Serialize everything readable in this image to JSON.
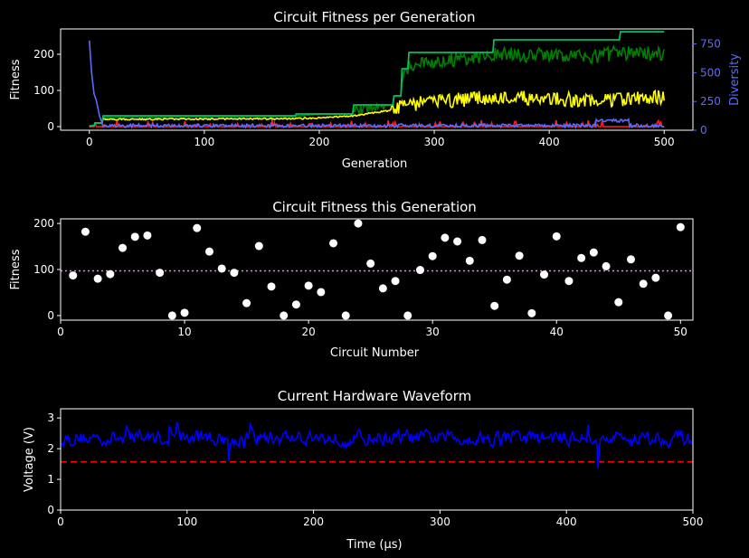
{
  "theme": {
    "background": "#000000",
    "foreground": "#ffffff",
    "diversity_color": "#5b6bff",
    "max_color": "#00c060",
    "p90_color": "#008000",
    "mean_color": "#ffff00",
    "min_color": "#ff2020",
    "scatter_color": "#ffffff",
    "mean_line_color": "#ee82ee",
    "waveform_color": "#0000ff",
    "threshold_color": "#ff0000"
  },
  "chart_data": [
    {
      "type": "line",
      "title": "Circuit Fitness per Generation",
      "xlabel": "Generation",
      "ylabel": "Fitness",
      "y2label": "Diversity",
      "xlim": [
        -25,
        525
      ],
      "ylim": [
        -10,
        270
      ],
      "y2lim": [
        0,
        880
      ],
      "xticks": [
        0,
        100,
        200,
        300,
        400,
        500
      ],
      "yticks": [
        0,
        100,
        200
      ],
      "y2ticks": [
        0,
        250,
        500,
        750
      ],
      "max_fitness_steps": [
        [
          0,
          2
        ],
        [
          5,
          10
        ],
        [
          12,
          30
        ],
        [
          180,
          35
        ],
        [
          230,
          60
        ],
        [
          265,
          85
        ],
        [
          272,
          160
        ],
        [
          278,
          205
        ],
        [
          352,
          240
        ],
        [
          430,
          240
        ],
        [
          440,
          240
        ],
        [
          462,
          262
        ],
        [
          500,
          262
        ]
      ],
      "p90_fitness_anchors": [
        [
          0,
          1
        ],
        [
          5,
          10
        ],
        [
          12,
          25
        ],
        [
          180,
          28
        ],
        [
          190,
          32
        ],
        [
          230,
          45
        ],
        [
          262,
          70
        ],
        [
          278,
          170
        ],
        [
          352,
          200
        ],
        [
          440,
          195
        ],
        [
          462,
          205
        ],
        [
          500,
          200
        ]
      ],
      "mean_fitness_anchors": [
        [
          0,
          1
        ],
        [
          12,
          20
        ],
        [
          180,
          22
        ],
        [
          200,
          24
        ],
        [
          230,
          30
        ],
        [
          262,
          45
        ],
        [
          278,
          60
        ],
        [
          352,
          80
        ],
        [
          440,
          70
        ],
        [
          500,
          80
        ]
      ],
      "min_fitness_base": 0,
      "diversity_anchors": [
        [
          0,
          780
        ],
        [
          2,
          500
        ],
        [
          4,
          320
        ],
        [
          6,
          260
        ],
        [
          9,
          120
        ],
        [
          12,
          30
        ],
        [
          25,
          40
        ],
        [
          500,
          40
        ]
      ],
      "points": 500
    },
    {
      "type": "scatter",
      "title": "Circuit Fitness this Generation",
      "xlabel": "Circuit Number",
      "ylabel": "Fitness",
      "xlim": [
        0,
        51
      ],
      "ylim": [
        -10,
        210
      ],
      "xticks": [
        0,
        10,
        20,
        30,
        40,
        50
      ],
      "yticks": [
        0,
        100,
        200
      ],
      "x": [
        1,
        2,
        3,
        4,
        5,
        6,
        7,
        8,
        9,
        10,
        11,
        12,
        13,
        14,
        15,
        16,
        17,
        18,
        19,
        20,
        21,
        22,
        23,
        24,
        25,
        26,
        27,
        28,
        29,
        30,
        31,
        32,
        33,
        34,
        35,
        36,
        37,
        38,
        39,
        40,
        41,
        42,
        43,
        44,
        45,
        46,
        47,
        48,
        49,
        50
      ],
      "y": [
        87,
        182,
        80,
        90,
        147,
        171,
        174,
        93,
        0,
        6,
        190,
        139,
        102,
        93,
        27,
        151,
        63,
        0,
        24,
        65,
        51,
        157,
        0,
        200,
        113,
        59,
        75,
        0,
        99,
        129,
        169,
        161,
        119,
        164,
        21,
        78,
        130,
        5,
        89,
        172,
        75,
        125,
        137,
        107,
        29,
        122,
        69,
        82,
        0,
        192
      ],
      "mean_line": 97
    },
    {
      "type": "line",
      "title": "Current Hardware Waveform",
      "xlabel": "Time (μs)",
      "ylabel": "Voltage (V)",
      "xlim": [
        0,
        500
      ],
      "ylim": [
        0,
        3.3
      ],
      "xticks": [
        0,
        100,
        200,
        300,
        400,
        500
      ],
      "yticks": [
        0,
        1,
        2,
        3
      ],
      "mean_voltage": 2.35,
      "threshold": 1.57,
      "points": 500
    }
  ]
}
